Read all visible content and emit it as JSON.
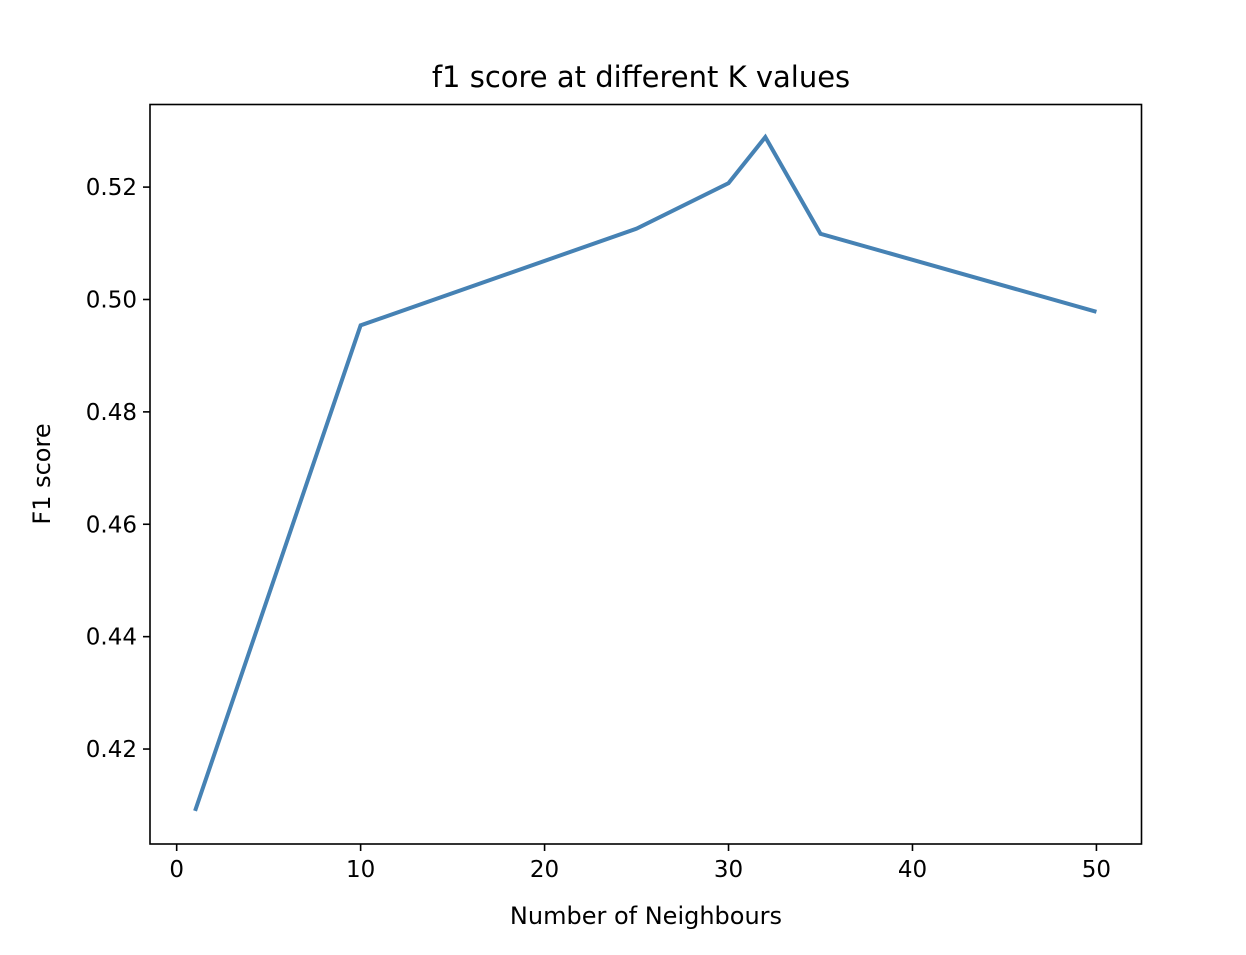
{
  "chart_data": {
    "type": "line",
    "title": "f1 score at different K values",
    "xlabel": "Number of Neighbours",
    "ylabel": "F1 score",
    "xlim": [
      -1.45,
      52.45
    ],
    "ylim": [
      0.4031,
      0.5347
    ],
    "x_ticks": [
      0,
      10,
      20,
      30,
      40,
      50
    ],
    "y_ticks": [
      0.42,
      0.44,
      0.46,
      0.48,
      0.5,
      0.52
    ],
    "x_tick_labels": [
      "0",
      "10",
      "20",
      "30",
      "40",
      "50"
    ],
    "y_tick_labels": [
      "0.42",
      "0.44",
      "0.46",
      "0.48",
      "0.50",
      "0.52"
    ],
    "grid": false,
    "series": [
      {
        "color": "#4682b4",
        "x": [
          1,
          10,
          25,
          30,
          32,
          35,
          50
        ],
        "y": [
          0.409,
          0.4954,
          0.5126,
          0.5207,
          0.5289,
          0.5117,
          0.4978
        ]
      }
    ]
  }
}
